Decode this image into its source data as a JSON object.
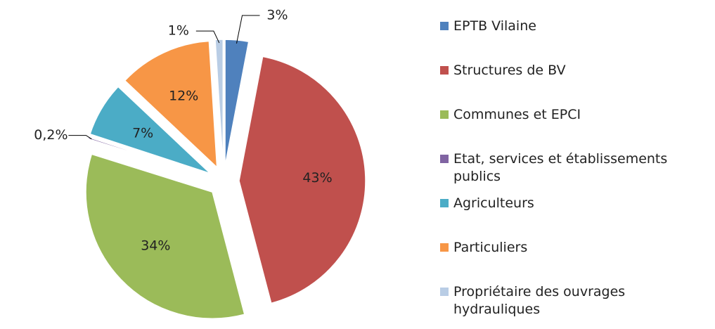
{
  "chart_data": {
    "type": "pie",
    "categories": [
      "EPTB Vilaine",
      "Structures de BV",
      "Communes et EPCI",
      "Etat, services et établissements publics",
      "Agriculteurs",
      "Particuliers",
      "Propriétaire des ouvrages hydrauliques"
    ],
    "values": [
      3,
      43,
      34,
      0.2,
      7,
      12,
      1
    ],
    "value_labels": [
      "3%",
      "43%",
      "34%",
      "0,2%",
      "7%",
      "12%",
      "1%"
    ],
    "colors": [
      "#4f81bd",
      "#c0504d",
      "#9bbb59",
      "#8064a2",
      "#4bacc6",
      "#f79646",
      "#b9cde5"
    ],
    "legend": "right"
  }
}
